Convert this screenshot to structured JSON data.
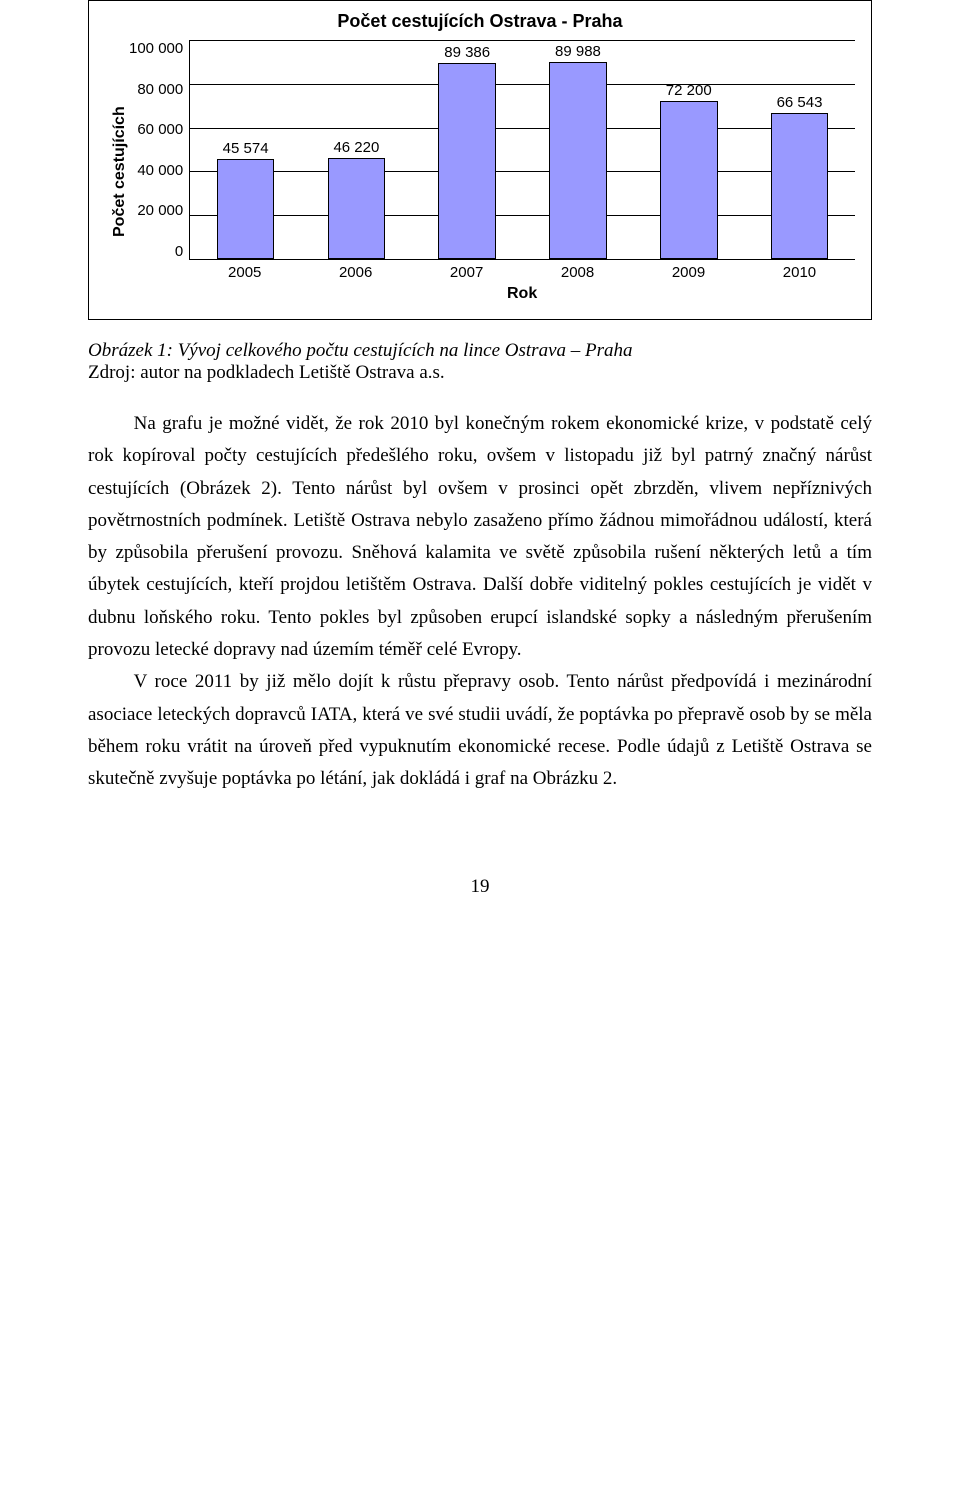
{
  "chart": {
    "type": "bar",
    "title": "Počet cestujících Ostrava - Praha",
    "title_fontsize": 18,
    "y_axis_title": "Počet cestujících",
    "x_axis_title": "Rok",
    "axis_title_fontsize": 16,
    "tick_fontsize": 15,
    "y_ticks": [
      "100 000",
      "80 000",
      "60 000",
      "40 000",
      "20 000",
      "0"
    ],
    "ylim": [
      0,
      100000
    ],
    "ytick_step": 20000,
    "grid_color": "#000000",
    "background_color": "#ffffff",
    "bar_fill": "#9999ff",
    "bar_border": "#000000",
    "bar_width": 0.62,
    "categories": [
      "2005",
      "2006",
      "2007",
      "2008",
      "2009",
      "2010"
    ],
    "values": [
      45574,
      46220,
      89386,
      89988,
      72200,
      66543
    ],
    "value_labels": [
      "45 574",
      "46 220",
      "89 386",
      "89 988",
      "72 200",
      "66 543"
    ]
  },
  "caption": "Obrázek 1: Vývoj celkového počtu cestujících na lince Ostrava – Praha",
  "source": "Zdroj: autor na podkladech Letiště Ostrava a.s.",
  "paragraphs": [
    "Na grafu je možné vidět, že rok 2010 byl konečným rokem ekonomické krize, v podstatě celý rok kopíroval počty cestujících předešlého roku, ovšem v listopadu již byl patrný značný nárůst cestujících (Obrázek 2). Tento nárůst byl ovšem v prosinci opět zbrzděn, vlivem nepříznivých povětrnostních podmínek. Letiště Ostrava nebylo zasaženo přímo žádnou mimořádnou událostí, která by způsobila přerušení provozu. Sněhová kalamita ve světě způsobila rušení některých letů a tím úbytek cestujících, kteří projdou letištěm Ostrava. Další dobře viditelný pokles cestujících je vidět v dubnu loňského roku. Tento pokles byl způsoben erupcí islandské sopky a následným přerušením provozu letecké dopravy nad územím téměř celé Evropy.",
    "V roce 2011 by již mělo dojít k růstu přepravy osob. Tento nárůst předpovídá i mezinárodní asociace leteckých dopravců IATA, která ve své studii uvádí, že poptávka po přepravě osob by se měla během roku vrátit na úroveň před vypuknutím ekonomické recese. Podle údajů z Letiště Ostrava se skutečně zvyšuje poptávka po létání, jak dokládá i graf na Obrázku 2."
  ],
  "page_number": "19"
}
